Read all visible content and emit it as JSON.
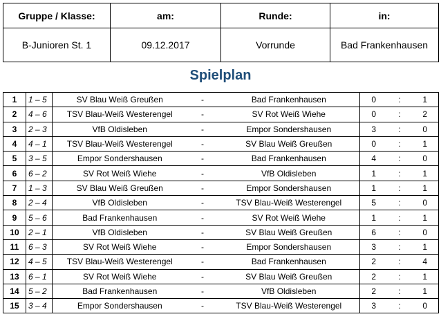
{
  "header": {
    "labels": [
      "Gruppe / Klasse:",
      "am:",
      "Runde:",
      "in:"
    ],
    "values": [
      "B-Junioren St. 1",
      "09.12.2017",
      "Vorrunde",
      "Bad Frankenhausen"
    ]
  },
  "title": "Spielplan",
  "matches": [
    [
      1,
      "1 – 5",
      "SV Blau Weiß Greußen",
      "-",
      "Bad Frankenhausen",
      0,
      ":",
      1
    ],
    [
      2,
      "4 – 6",
      "TSV Blau-Weiß Westerengel",
      "-",
      "SV Rot Weiß Wiehe",
      0,
      ":",
      2
    ],
    [
      3,
      "2 – 3",
      "VfB Oldisleben",
      "-",
      "Empor Sondershausen",
      3,
      ":",
      0
    ],
    [
      4,
      "4 – 1",
      "TSV Blau-Weiß Westerengel",
      "-",
      "SV Blau Weiß Greußen",
      0,
      ":",
      1
    ],
    [
      5,
      "3 – 5",
      "Empor Sondershausen",
      "-",
      "Bad Frankenhausen",
      4,
      ":",
      0
    ],
    [
      6,
      "6 – 2",
      "SV Rot Weiß Wiehe",
      "-",
      "VfB Oldisleben",
      1,
      ":",
      1
    ],
    [
      7,
      "1 – 3",
      "SV Blau Weiß Greußen",
      "-",
      "Empor Sondershausen",
      1,
      ":",
      1
    ],
    [
      8,
      "2 – 4",
      "VfB Oldisleben",
      "-",
      "TSV Blau-Weiß Westerengel",
      5,
      ":",
      0
    ],
    [
      9,
      "5 – 6",
      "Bad Frankenhausen",
      "-",
      "SV Rot Weiß Wiehe",
      1,
      ":",
      1
    ],
    [
      10,
      "2 – 1",
      "VfB Oldisleben",
      "-",
      "SV Blau Weiß Greußen",
      6,
      ":",
      0
    ],
    [
      11,
      "6 – 3",
      "SV Rot Weiß Wiehe",
      "-",
      "Empor Sondershausen",
      3,
      ":",
      1
    ],
    [
      12,
      "4 – 5",
      "TSV Blau-Weiß Westerengel",
      "-",
      "Bad Frankenhausen",
      2,
      ":",
      4
    ],
    [
      13,
      "6 – 1",
      "SV Rot Weiß Wiehe",
      "-",
      "SV Blau Weiß Greußen",
      2,
      ":",
      1
    ],
    [
      14,
      "5 – 2",
      "Bad Frankenhausen",
      "-",
      "VfB Oldisleben",
      2,
      ":",
      1
    ],
    [
      15,
      "3 – 4",
      "Empor Sondershausen",
      "-",
      "TSV Blau-Weiß Westerengel",
      3,
      ":",
      0
    ]
  ]
}
